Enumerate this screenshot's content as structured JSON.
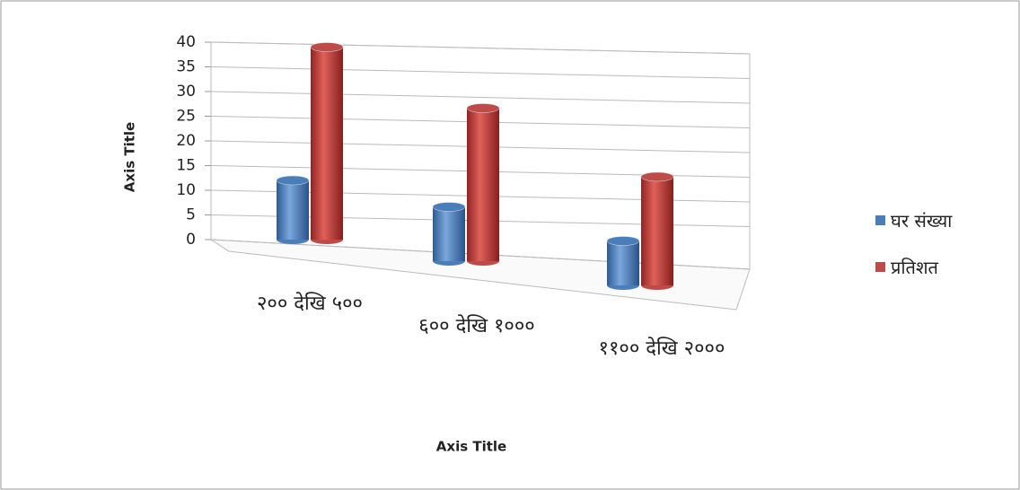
{
  "chart_data": {
    "type": "bar3d",
    "categories": [
      "२०० देखि ५००",
      "६०० देखि १०००",
      "११०० देखि २०००"
    ],
    "series": [
      {
        "name": "घर संख्या",
        "color": "#4a7ebb",
        "values": [
          12,
          11,
          9
        ]
      },
      {
        "name": "प्रतिशत",
        "color": "#be4b48",
        "values": [
          39,
          31,
          22
        ]
      }
    ],
    "ylim": [
      0,
      40
    ],
    "yticks": [
      0,
      5,
      10,
      15,
      20,
      25,
      30,
      35,
      40
    ],
    "x_axis_title": "Axis Title",
    "y_axis_title": "Axis Title",
    "grid": true,
    "legend": "right"
  }
}
